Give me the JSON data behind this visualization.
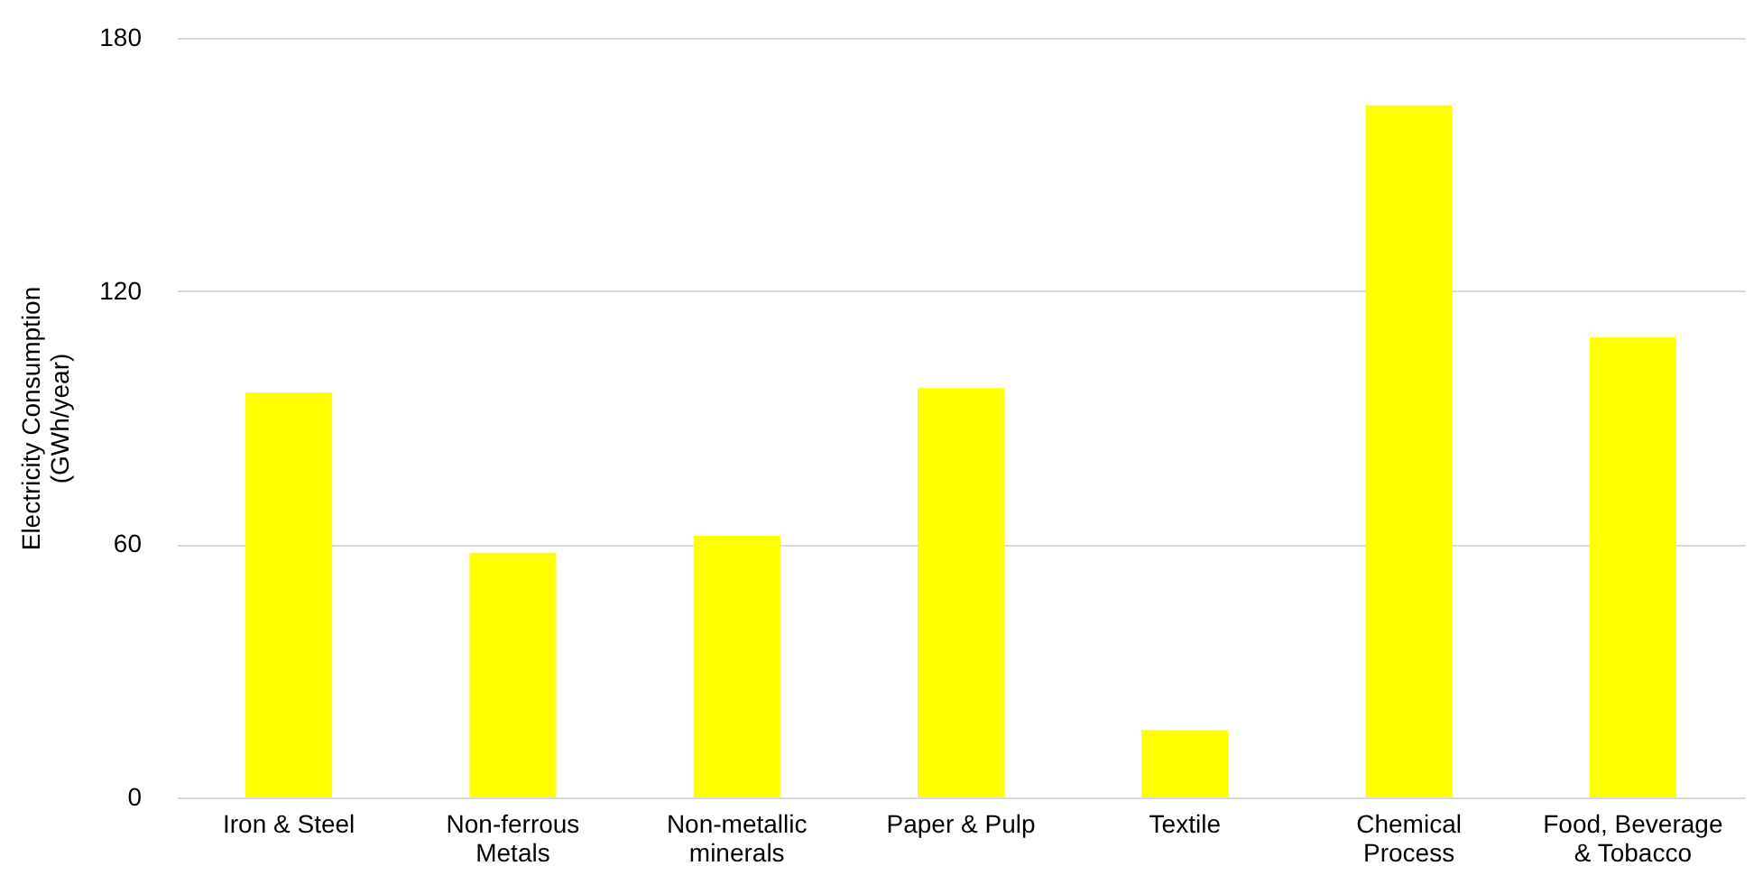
{
  "chart_data": {
    "type": "bar",
    "ylabel": "Electricity Consumption (GWh/year)",
    "categories": [
      "Iron & Steel",
      "Non-ferrous Metals",
      "Non-metallic minerals",
      "Paper & Pulp",
      "Textile",
      "Chemical Process",
      "Food, Beverage & Tobacco"
    ],
    "values": [
      96,
      58,
      62,
      97,
      16,
      164,
      109
    ],
    "color": "#ffff00",
    "ylim": [
      0,
      180
    ],
    "yticks": [
      0,
      60,
      120,
      180
    ],
    "grid": "y"
  }
}
